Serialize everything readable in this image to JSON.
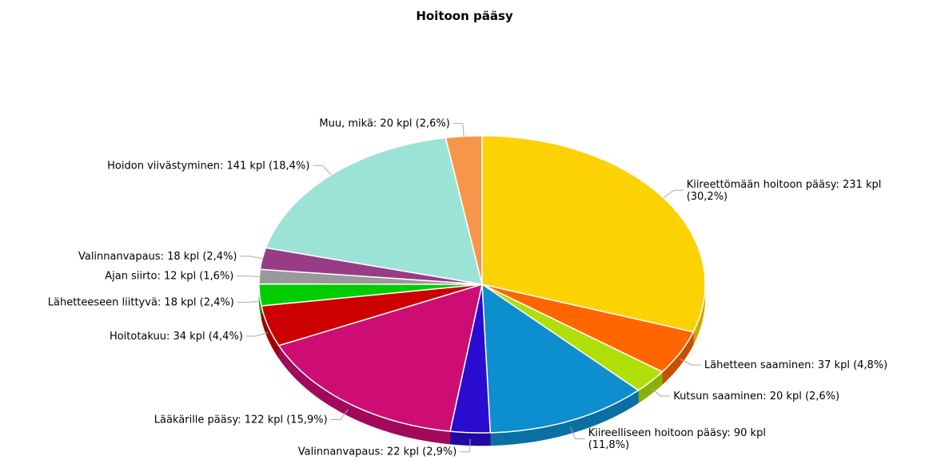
{
  "chart_data": {
    "type": "pie",
    "title": "Hoitoon pääsy",
    "slices": [
      {
        "label": "Kiireettömään hoitoon pääsy",
        "value": 231,
        "percent": "30,2%",
        "text": [
          "Kiireettömään hoitoon pääsy: 231 kpl",
          "(30,2%)"
        ],
        "color": "#FCD202",
        "side_color": "#CDAA00"
      },
      {
        "label": "Lähetteen saaminen",
        "value": 37,
        "percent": "4,8%",
        "text": [
          "Lähetteen saaminen: 37 kpl (4,8%)"
        ],
        "color": "#FF6600",
        "side_color": "#C85000"
      },
      {
        "label": "Kutsun saaminen",
        "value": 20,
        "percent": "2,6%",
        "text": [
          "Kutsun saaminen: 20 kpl (2,6%)"
        ],
        "color": "#B0DE09",
        "side_color": "#8AB007"
      },
      {
        "label": "Kiireelliseen hoitoon pääsy",
        "value": 90,
        "percent": "11,8%",
        "text": [
          "Kiireelliseen hoitoon pääsy: 90 kpl",
          "(11,8%)"
        ],
        "color": "#0D8ECF",
        "side_color": "#0A6FA3"
      },
      {
        "label": "Valinnanvapaus",
        "value": 22,
        "percent": "2,9%",
        "text": [
          "Valinnanvapaus: 22 kpl (2,9%)"
        ],
        "color": "#2A0CD0",
        "side_color": "#2009A3"
      },
      {
        "label": "Lääkärille pääsy",
        "value": 122,
        "percent": "15,9%",
        "text": [
          "Lääkärille pääsy: 122 kpl (15,9%)"
        ],
        "color": "#CD0D74",
        "side_color": "#A10A5B"
      },
      {
        "label": "Hoitotakuu",
        "value": 34,
        "percent": "4,4%",
        "text": [
          "Hoitotakuu: 34 kpl (4,4%)"
        ],
        "color": "#CC0000",
        "side_color": "#9F0000"
      },
      {
        "label": "Lähetteeseen liittyvä",
        "value": 18,
        "percent": "2,4%",
        "text": [
          "Lähetteeseen liittyvä: 18 kpl (2,4%)"
        ],
        "color": "#00CC00",
        "side_color": "#009F00"
      },
      {
        "label": "Ajan siirto",
        "value": 12,
        "percent": "1,6%",
        "text": [
          "Ajan siirto: 12 kpl (1,6%)"
        ],
        "color": "#999999",
        "side_color": "#777777"
      },
      {
        "label": "Valinnanvapaus",
        "value": 18,
        "percent": "2,4%",
        "text": [
          "Valinnanvapaus: 18 kpl (2,4%)"
        ],
        "color": "#993C86",
        "side_color": "#762E67"
      },
      {
        "label": "Hoidon viivästyminen",
        "value": 141,
        "percent": "18,4%",
        "text": [
          "Hoidon viivästyminen: 141 kpl (18,4%)"
        ],
        "color": "#9BE3D6",
        "side_color": "#78B1A7"
      },
      {
        "label": "Muu, mikä",
        "value": 20,
        "percent": "2,6%",
        "text": [
          "Muu, mikä: 20 kpl (2,6%)"
        ],
        "color": "#F7964B",
        "side_color": "#C4763A"
      }
    ]
  }
}
